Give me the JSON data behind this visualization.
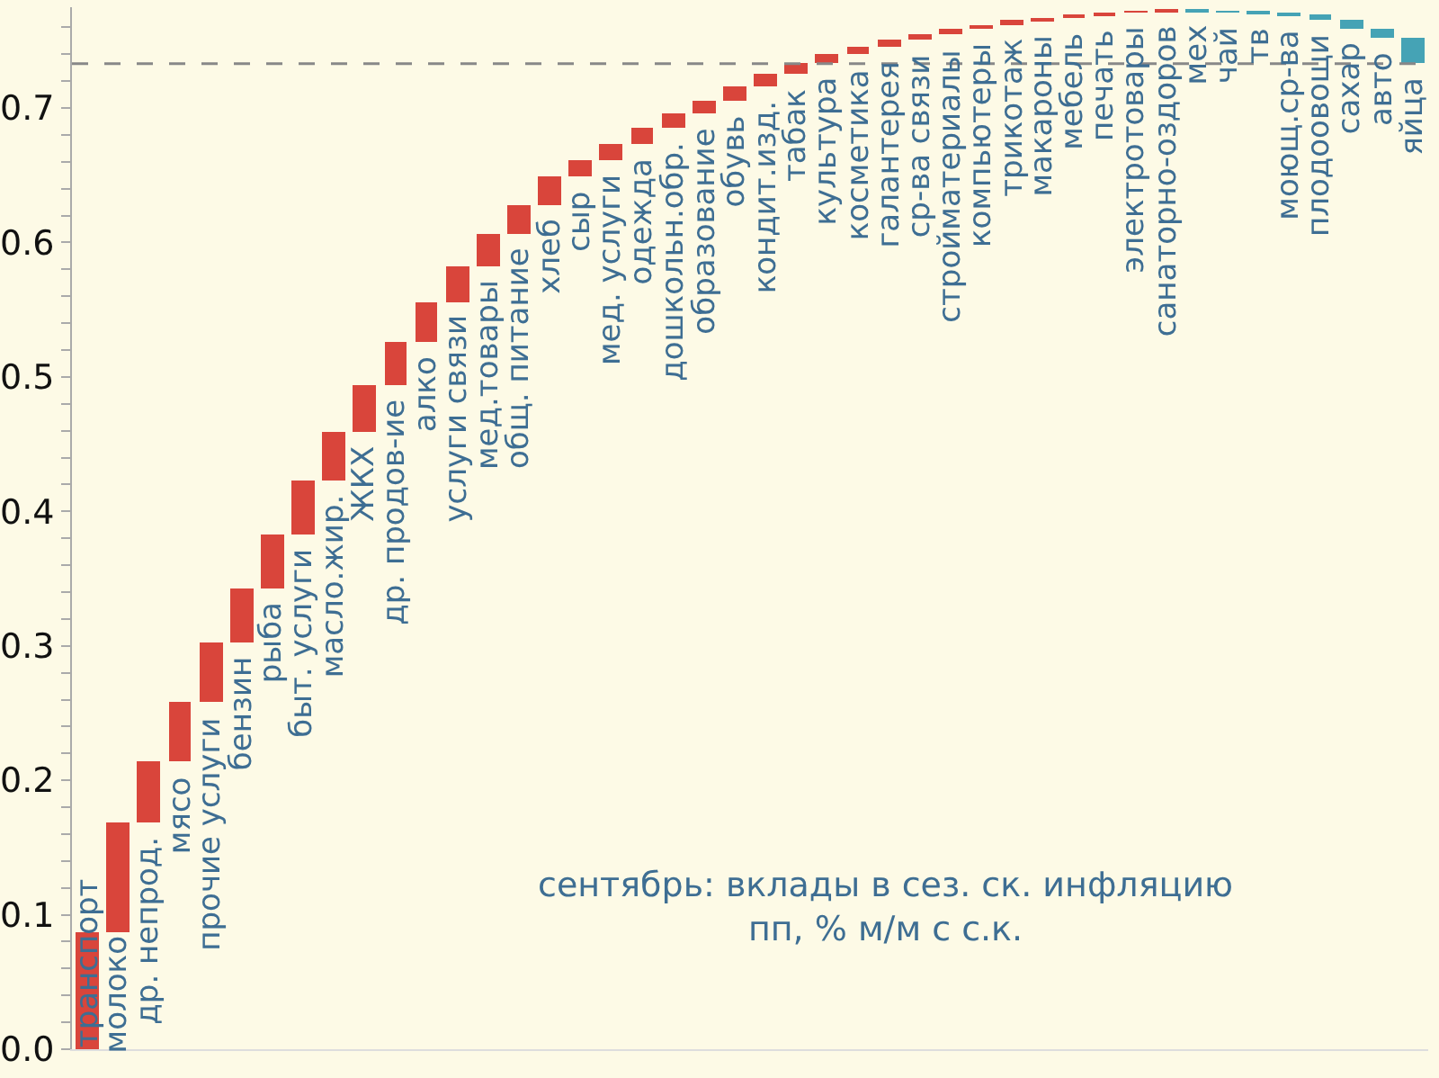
{
  "chart_data": {
    "type": "bar",
    "categories": [
      "транспорт",
      "молоко",
      "др. непрод.",
      "мясо",
      "прочие услуги",
      "бензин",
      "рыба",
      "быт. услуги",
      "масло.жир.",
      "ЖКХ",
      "др. продов-ие",
      "алко",
      "услуги связи",
      "мед.товары",
      "общ. питание",
      "хлеб",
      "сыр",
      "мед. услуги",
      "одежда",
      "дошкольн.обр.",
      "образование",
      "обувь",
      "кондит.изд.",
      "табак",
      "культура",
      "косметика",
      "галантерея",
      "ср-ва связи",
      "стройматериалы",
      "компьютеры",
      "трикотаж",
      "макароны",
      "мебель",
      "печать",
      "электротовары",
      "санаторно-оздоров",
      "мех",
      "чай",
      "тв",
      "моющ.ср-ва",
      "плодоовощи",
      "сахар",
      "авто",
      "яйца"
    ],
    "values": [
      0.087,
      0.081,
      0.046,
      0.044,
      0.044,
      0.041,
      0.04,
      0.04,
      0.036,
      0.035,
      0.032,
      0.03,
      0.026,
      0.025,
      0.021,
      0.021,
      0.012,
      0.012,
      0.012,
      0.011,
      0.009,
      0.011,
      0.009,
      0.008,
      0.007,
      0.006,
      0.005,
      0.004,
      0.004,
      0.003,
      0.003,
      0.002,
      0.002,
      0.002,
      0.001,
      0.001,
      -0.001,
      -0.001,
      -0.001,
      -0.001,
      -0.004,
      -0.006,
      -0.007,
      -0.019
    ],
    "base": [
      0,
      0.087,
      0.168,
      0.214,
      0.258,
      0.302,
      0.343,
      0.383,
      0.423,
      0.459,
      0.494,
      0.526,
      0.556,
      0.582,
      0.607,
      0.628,
      0.649,
      0.661,
      0.673,
      0.685,
      0.696,
      0.705,
      0.716,
      0.725,
      0.733,
      0.74,
      0.746,
      0.751,
      0.755,
      0.759,
      0.762,
      0.765,
      0.767,
      0.769,
      0.771,
      0.772,
      0.773,
      0.772,
      0.771,
      0.77,
      0.769,
      0.765,
      0.759,
      0.752
    ],
    "colors": [
      "#d9453b",
      "#d9453b",
      "#d9453b",
      "#d9453b",
      "#d9453b",
      "#d9453b",
      "#d9453b",
      "#d9453b",
      "#d9453b",
      "#d9453b",
      "#d9453b",
      "#d9453b",
      "#d9453b",
      "#d9453b",
      "#d9453b",
      "#d9453b",
      "#d9453b",
      "#d9453b",
      "#d9453b",
      "#d9453b",
      "#d9453b",
      "#d9453b",
      "#d9453b",
      "#d9453b",
      "#d9453b",
      "#d9453b",
      "#d9453b",
      "#d9453b",
      "#d9453b",
      "#d9453b",
      "#d9453b",
      "#d9453b",
      "#d9453b",
      "#d9453b",
      "#d9453b",
      "#d9453b",
      "#45a3b5",
      "#45a3b5",
      "#45a3b5",
      "#45a3b5",
      "#45a3b5",
      "#45a3b5",
      "#45a3b5",
      "#45a3b5"
    ],
    "ylim": [
      0,
      0.775
    ],
    "yticks": [
      {
        "value": 0,
        "label": "0.0"
      },
      {
        "value": 0.02,
        "label": null
      },
      {
        "value": 0.04,
        "label": null
      },
      {
        "value": 0.06,
        "label": null
      },
      {
        "value": 0.08,
        "label": null
      },
      {
        "value": 0.1,
        "label": "0.1"
      },
      {
        "value": 0.12,
        "label": null
      },
      {
        "value": 0.14,
        "label": null
      },
      {
        "value": 0.16,
        "label": null
      },
      {
        "value": 0.18,
        "label": null
      },
      {
        "value": 0.2,
        "label": "0.2"
      },
      {
        "value": 0.22,
        "label": null
      },
      {
        "value": 0.24,
        "label": null
      },
      {
        "value": 0.26,
        "label": null
      },
      {
        "value": 0.28,
        "label": null
      },
      {
        "value": 0.3,
        "label": "0.3"
      },
      {
        "value": 0.32,
        "label": null
      },
      {
        "value": 0.34,
        "label": null
      },
      {
        "value": 0.36,
        "label": null
      },
      {
        "value": 0.38,
        "label": null
      },
      {
        "value": 0.4,
        "label": "0.4"
      },
      {
        "value": 0.42,
        "label": null
      },
      {
        "value": 0.44,
        "label": null
      },
      {
        "value": 0.46,
        "label": null
      },
      {
        "value": 0.48,
        "label": null
      },
      {
        "value": 0.5,
        "label": "0.5"
      },
      {
        "value": 0.52,
        "label": null
      },
      {
        "value": 0.54,
        "label": null
      },
      {
        "value": 0.56,
        "label": null
      },
      {
        "value": 0.58,
        "label": null
      },
      {
        "value": 0.6,
        "label": "0.6"
      },
      {
        "value": 0.62,
        "label": null
      },
      {
        "value": 0.64,
        "label": null
      },
      {
        "value": 0.66,
        "label": null
      },
      {
        "value": 0.68,
        "label": null
      },
      {
        "value": 0.7,
        "label": "0.7"
      },
      {
        "value": 0.72,
        "label": null
      },
      {
        "value": 0.74,
        "label": null
      },
      {
        "value": 0.76,
        "label": null
      }
    ],
    "ref_lines": [
      {
        "axis": "y",
        "value": 0.733,
        "color": "#888888",
        "line_style": "dashed"
      }
    ],
    "annotations": [
      "сентябрь: вклады в сез. ск. инфляцию\nпп, % м/м с с.к."
    ],
    "grid": false
  }
}
